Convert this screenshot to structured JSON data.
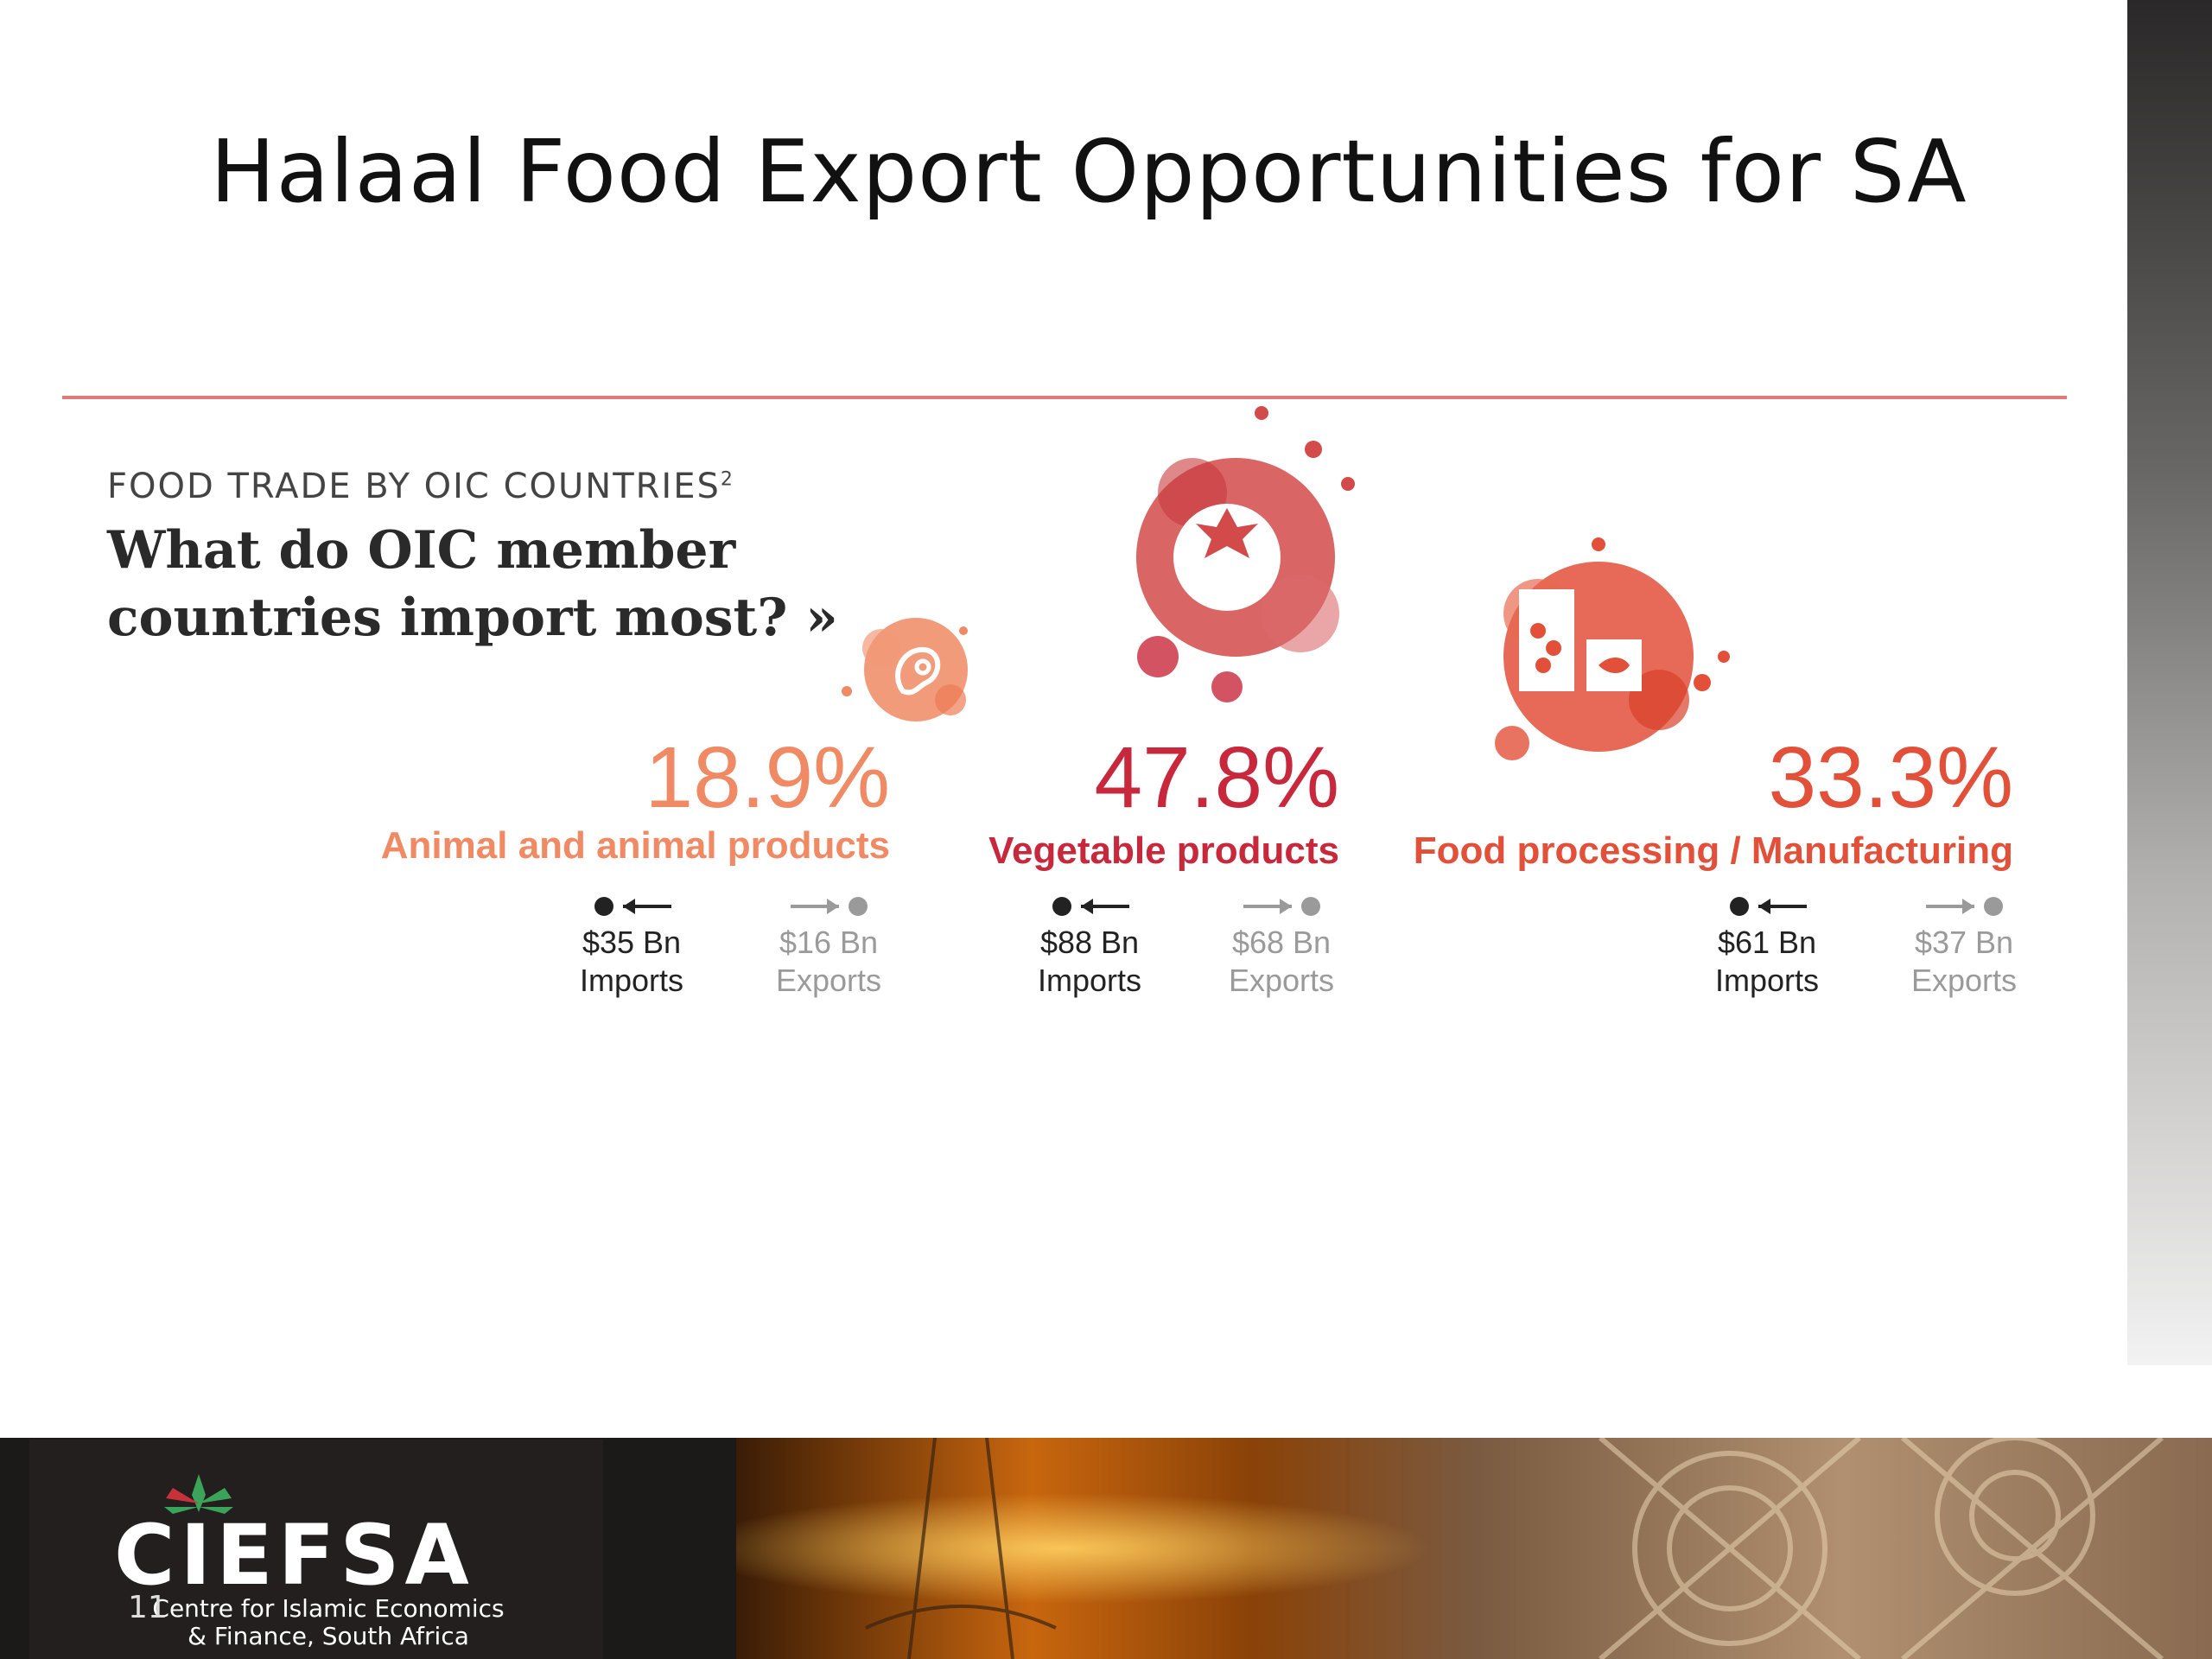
{
  "slide": {
    "title": "Halaal Food Export Opportunities for SA",
    "slide_number": "11"
  },
  "infographic": {
    "kicker": "FOOD TRADE BY OIC COUNTRIES",
    "kicker_sup": "2",
    "headline_line1": "What do OIC member",
    "headline_line2": "countries import most? »",
    "categories": [
      {
        "percent": "18.9%",
        "label": "Animal and animal products",
        "color": "#f08a64",
        "imports": "$35 Bn",
        "imports_label": "Imports",
        "exports": "$16 Bn",
        "exports_label": "Exports",
        "icon": "meat-icon"
      },
      {
        "percent": "47.8%",
        "label": "Vegetable products",
        "color": "#c8283c",
        "imports": "$88 Bn",
        "imports_label": "Imports",
        "exports": "$68 Bn",
        "exports_label": "Exports",
        "icon": "tomato-icon"
      },
      {
        "percent": "33.3%",
        "label": "Food processing / Manufacturing",
        "color": "#e2503a",
        "imports": "$61 Bn",
        "imports_label": "Imports",
        "exports": "$37 Bn",
        "exports_label": "Exports",
        "icon": "jar-fish-icon"
      }
    ]
  },
  "footer": {
    "logo_text": "CIEFSA",
    "logo_sub_line1": "Centre for Islamic  Economics",
    "logo_sub_line2": "& Finance, South Africa"
  },
  "colors": {
    "rule": "#e07a78",
    "import_marker": "#222222",
    "export_marker": "#9a9a9a"
  }
}
